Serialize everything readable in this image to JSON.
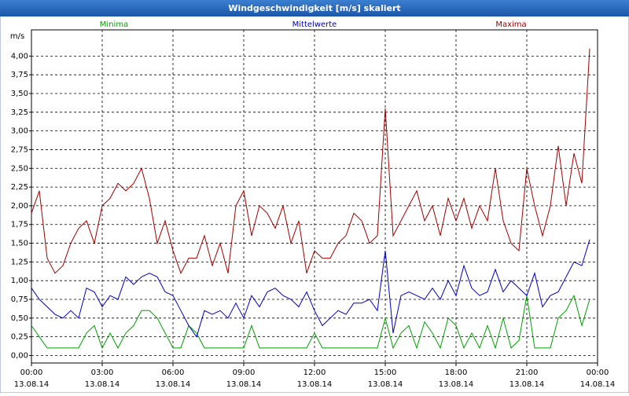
{
  "chart_data": {
    "type": "line",
    "title": "Windgeschwindigkeit [m/s] skaliert",
    "ylabel": "m/s",
    "x": [
      0,
      20,
      40,
      60,
      80,
      100,
      120,
      140,
      160,
      180,
      200,
      220,
      240,
      260,
      280,
      300,
      320,
      340,
      360,
      380,
      400,
      420,
      440,
      460,
      480,
      500,
      520,
      540,
      560,
      580,
      600,
      620,
      640,
      660,
      680,
      700,
      720,
      740,
      760,
      780,
      800,
      820,
      840,
      860,
      880,
      900,
      920,
      940,
      960,
      980,
      1000,
      1020,
      1040,
      1060,
      1080,
      1100,
      1120,
      1140,
      1160,
      1180,
      1200,
      1220,
      1240,
      1260,
      1280,
      1300,
      1320,
      1340,
      1360,
      1380,
      1400,
      1420
    ],
    "series": [
      {
        "name": "Minima",
        "color": "#00a000",
        "values": [
          0.4,
          0.25,
          0.1,
          0.1,
          0.1,
          0.1,
          0.1,
          0.3,
          0.4,
          0.1,
          0.3,
          0.1,
          0.3,
          0.4,
          0.6,
          0.6,
          0.5,
          0.3,
          0.1,
          0.1,
          0.4,
          0.3,
          0.1,
          0.1,
          0.1,
          0.1,
          0.1,
          0.1,
          0.4,
          0.1,
          0.1,
          0.1,
          0.1,
          0.1,
          0.1,
          0.1,
          0.3,
          0.1,
          0.1,
          0.1,
          0.1,
          0.1,
          0.1,
          0.1,
          0.1,
          0.5,
          0.1,
          0.3,
          0.4,
          0.1,
          0.45,
          0.3,
          0.1,
          0.5,
          0.4,
          0.1,
          0.3,
          0.1,
          0.4,
          0.1,
          0.5,
          0.1,
          0.2,
          0.8,
          0.1,
          0.1,
          0.1,
          0.5,
          0.6,
          0.8,
          0.4,
          0.75
        ]
      },
      {
        "name": "Mittelwerte",
        "color": "#0000c0",
        "values": [
          0.9,
          0.75,
          0.65,
          0.55,
          0.5,
          0.6,
          0.5,
          0.9,
          0.85,
          0.65,
          0.8,
          0.75,
          1.05,
          0.95,
          1.05,
          1.1,
          1.05,
          0.85,
          0.8,
          0.6,
          0.4,
          0.25,
          0.6,
          0.55,
          0.6,
          0.5,
          0.7,
          0.5,
          0.8,
          0.65,
          0.85,
          0.9,
          0.8,
          0.75,
          0.65,
          0.85,
          0.6,
          0.4,
          0.5,
          0.6,
          0.55,
          0.7,
          0.7,
          0.75,
          0.6,
          1.4,
          0.3,
          0.8,
          0.85,
          0.8,
          0.75,
          0.9,
          0.75,
          1.0,
          0.8,
          1.2,
          0.9,
          0.8,
          0.85,
          1.15,
          0.85,
          1.0,
          0.9,
          0.8,
          1.1,
          0.65,
          0.8,
          0.85,
          1.05,
          1.25,
          1.2,
          1.55
        ]
      },
      {
        "name": "Maxima",
        "color": "#a00000",
        "values": [
          1.9,
          2.2,
          1.3,
          1.1,
          1.2,
          1.5,
          1.7,
          1.8,
          1.5,
          2.0,
          2.1,
          2.3,
          2.2,
          2.3,
          2.5,
          2.1,
          1.5,
          1.8,
          1.4,
          1.1,
          1.3,
          1.3,
          1.6,
          1.2,
          1.5,
          1.1,
          2.0,
          2.2,
          1.6,
          2.0,
          1.9,
          1.7,
          2.0,
          1.5,
          1.8,
          1.1,
          1.4,
          1.3,
          1.3,
          1.5,
          1.6,
          1.9,
          1.8,
          1.5,
          1.6,
          3.3,
          1.6,
          1.8,
          2.0,
          2.2,
          1.8,
          2.0,
          1.6,
          2.1,
          1.8,
          2.1,
          1.7,
          2.0,
          1.8,
          2.5,
          1.8,
          1.5,
          1.4,
          2.5,
          2.0,
          1.6,
          2.0,
          2.8,
          2.0,
          2.7,
          2.3,
          4.1
        ]
      }
    ],
    "xlim": [
      0,
      1440
    ],
    "xticks": [
      {
        "value": 0,
        "label": "00:00",
        "date": "13.08.14"
      },
      {
        "value": 180,
        "label": "03:00",
        "date": "13.08.14"
      },
      {
        "value": 360,
        "label": "06:00",
        "date": "13.08.14"
      },
      {
        "value": 540,
        "label": "09:00",
        "date": "13.08.14"
      },
      {
        "value": 720,
        "label": "12:00",
        "date": "13.08.14"
      },
      {
        "value": 900,
        "label": "15:00",
        "date": "13.08.14"
      },
      {
        "value": 1080,
        "label": "18:00",
        "date": "13.08.14"
      },
      {
        "value": 1260,
        "label": "21:00",
        "date": "13.08.14"
      },
      {
        "value": 1440,
        "label": "00:00",
        "date": "14.08.14"
      }
    ],
    "ylim": [
      -0.1,
      4.35
    ],
    "yticks": [
      {
        "value": 0,
        "label": "0,00"
      },
      {
        "value": 0.25,
        "label": "0,25"
      },
      {
        "value": 0.5,
        "label": "0,50"
      },
      {
        "value": 0.75,
        "label": "0,75"
      },
      {
        "value": 1,
        "label": "1,00"
      },
      {
        "value": 1.25,
        "label": "1,25"
      },
      {
        "value": 1.5,
        "label": "1,50"
      },
      {
        "value": 1.75,
        "label": "1,75"
      },
      {
        "value": 2,
        "label": "2,00"
      },
      {
        "value": 2.25,
        "label": "2,25"
      },
      {
        "value": 2.5,
        "label": "2,50"
      },
      {
        "value": 2.75,
        "label": "2,75"
      },
      {
        "value": 3,
        "label": "3,00"
      },
      {
        "value": 3.25,
        "label": "3,25"
      },
      {
        "value": 3.5,
        "label": "3,50"
      },
      {
        "value": 3.75,
        "label": "3,75"
      },
      {
        "value": 4,
        "label": "4,00"
      }
    ],
    "grid": true
  }
}
